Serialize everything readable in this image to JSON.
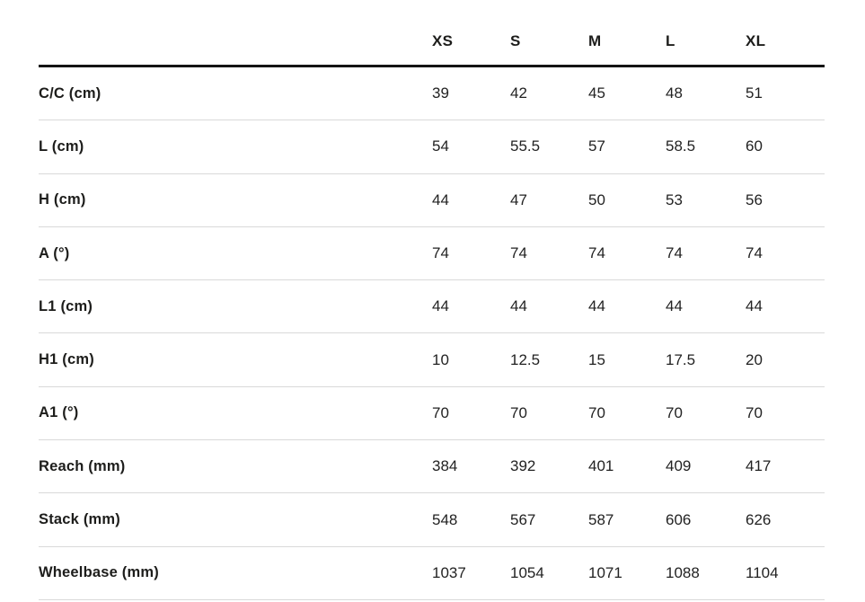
{
  "chart_data": {
    "type": "table",
    "columns": [
      "",
      "XS",
      "S",
      "M",
      "L",
      "XL"
    ],
    "rows": [
      {
        "label": "C/C (cm)",
        "values": [
          "39",
          "42",
          "45",
          "48",
          "51"
        ]
      },
      {
        "label": "L (cm)",
        "values": [
          "54",
          "55.5",
          "57",
          "58.5",
          "60"
        ]
      },
      {
        "label": "H (cm)",
        "values": [
          "44",
          "47",
          "50",
          "53",
          "56"
        ]
      },
      {
        "label": "A (°)",
        "values": [
          "74",
          "74",
          "74",
          "74",
          "74"
        ]
      },
      {
        "label": "L1 (cm)",
        "values": [
          "44",
          "44",
          "44",
          "44",
          "44"
        ]
      },
      {
        "label": "H1 (cm)",
        "values": [
          "10",
          "12.5",
          "15",
          "17.5",
          "20"
        ]
      },
      {
        "label": "A1 (°)",
        "values": [
          "70",
          "70",
          "70",
          "70",
          "70"
        ]
      },
      {
        "label": "Reach (mm)",
        "values": [
          "384",
          "392",
          "401",
          "409",
          "417"
        ]
      },
      {
        "label": "Stack (mm)",
        "values": [
          "548",
          "567",
          "587",
          "606",
          "626"
        ]
      },
      {
        "label": "Wheelbase (mm)",
        "values": [
          "1037",
          "1054",
          "1071",
          "1088",
          "1104"
        ]
      }
    ],
    "layout": {
      "legend": "none",
      "grid": "horizontal-rules-only",
      "header_rule": "heavy",
      "row_rule": "light"
    },
    "colors": {
      "text": "#1d1d1b",
      "value_text": "#222222",
      "heavy_rule": "#141414",
      "light_rule": "#d9d9d9",
      "background": "#ffffff"
    }
  }
}
